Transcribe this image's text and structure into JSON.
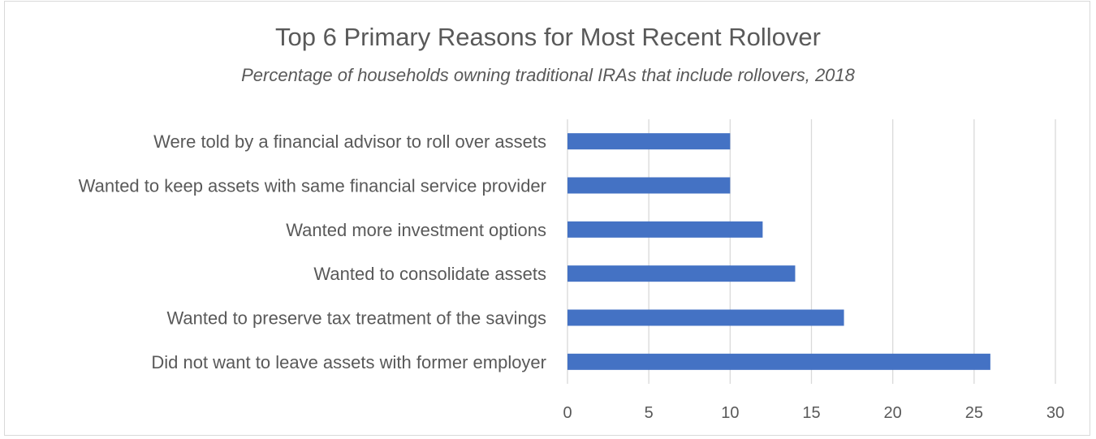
{
  "chart_data": {
    "type": "bar",
    "orientation": "horizontal",
    "title": "Top 6 Primary Reasons for Most Recent Rollover",
    "subtitle": "Percentage of households owning traditional IRAs that include rollovers, 2018",
    "categories": [
      "Were told by a financial advisor to roll over assets",
      "Wanted to keep assets with same financial service provider",
      "Wanted more investment options",
      "Wanted to consolidate assets",
      "Wanted to preserve tax treatment of the savings",
      "Did not want to leave assets with former employer"
    ],
    "values": [
      10,
      10,
      12,
      14,
      17,
      26
    ],
    "xlim": [
      0,
      30
    ],
    "xticks": [
      0,
      5,
      10,
      15,
      20,
      25,
      30
    ],
    "grid": true,
    "legend": "none",
    "bar_color": "#4472c4"
  }
}
